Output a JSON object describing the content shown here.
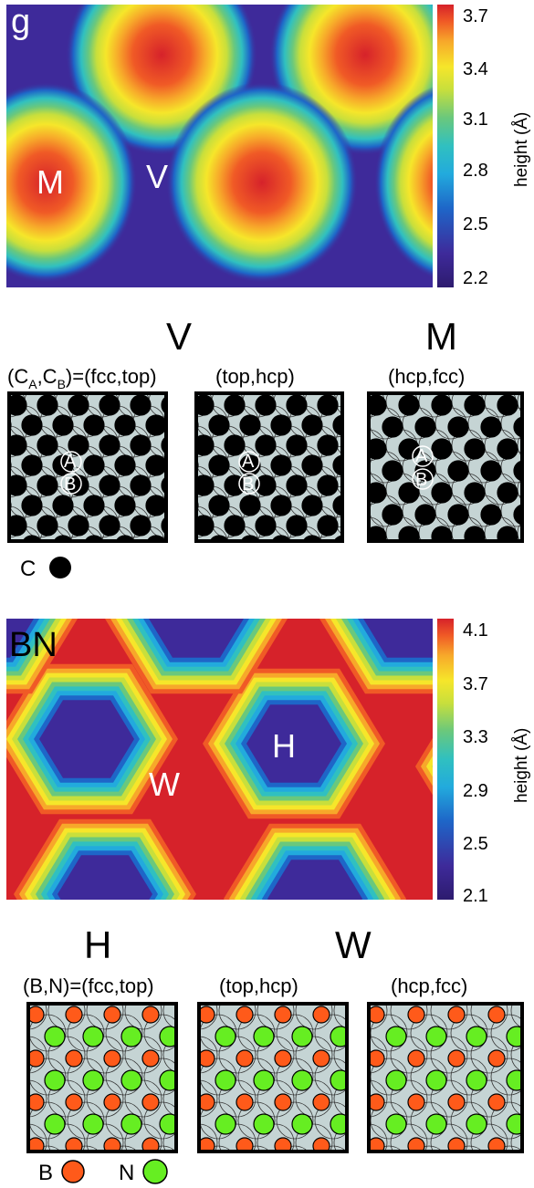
{
  "panel_g": {
    "tag": "g",
    "sites": {
      "M": "M",
      "V": "V"
    },
    "colorbar": {
      "unit_label": "height (Å)",
      "ticks": [
        "3.7",
        "3.4",
        "3.1",
        "2.8",
        "2.5",
        "2.2"
      ],
      "range": [
        2.2,
        3.7
      ]
    }
  },
  "graphene_models": {
    "header_left": "V",
    "header_right": "M",
    "labels": [
      "(C_A,C_B)=(fcc,top)",
      "(top,hcp)",
      "(hcp,fcc)"
    ],
    "sublattice_labels": [
      "A",
      "B"
    ],
    "legend_c": "C",
    "atom_color": "#000000",
    "substrate_color": "#c5d4d4"
  },
  "panel_bn": {
    "tag": "BN",
    "sites": {
      "W": "W",
      "H": "H"
    },
    "colorbar": {
      "unit_label": "height (Å)",
      "ticks": [
        "4.1",
        "3.7",
        "3.3",
        "2.9",
        "2.5",
        "2.1"
      ],
      "range": [
        2.1,
        4.1
      ]
    }
  },
  "bn_models": {
    "header_left": "H",
    "header_right": "W",
    "labels": [
      "(B,N)=(fcc,top)",
      "(top,hcp)",
      "(hcp,fcc)"
    ],
    "legend_b": "B",
    "legend_n": "N",
    "b_color": "#ff5a1a",
    "n_color": "#66ee22"
  },
  "colormap": [
    "#2d1b6e",
    "#3e2a9a",
    "#1e66c8",
    "#22aadd",
    "#30c0c0",
    "#6ac87c",
    "#c8df3c",
    "#f6e62a",
    "#f7a82a",
    "#f05a26",
    "#d6222a"
  ]
}
